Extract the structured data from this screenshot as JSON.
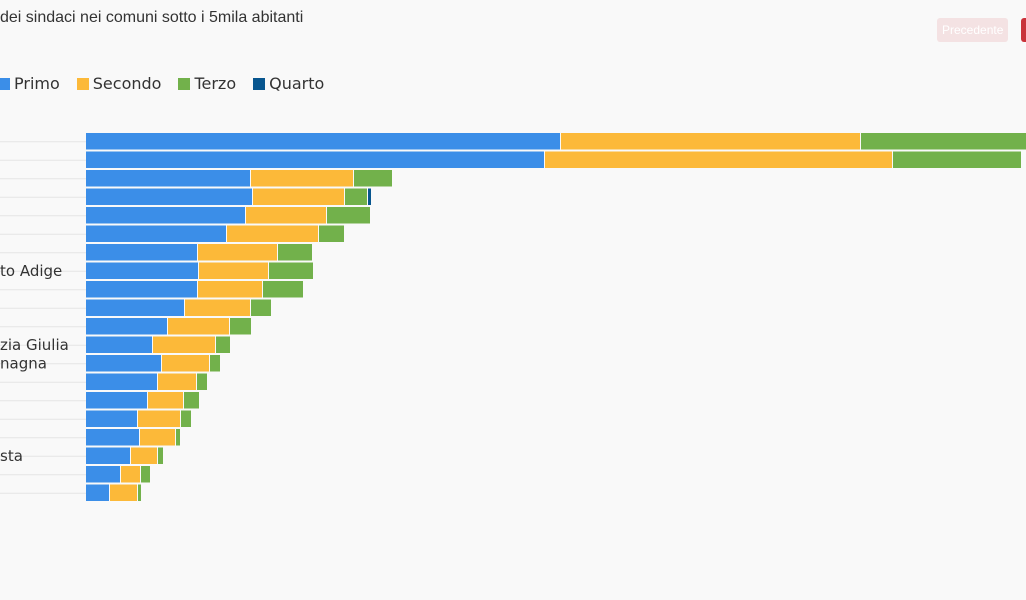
{
  "title": "dei sindaci nei comuni sotto i 5mila abitanti",
  "buttons": {
    "prev_label": "Precedente"
  },
  "colors": {
    "primo": "#3b8ee8",
    "secondo": "#fcb939",
    "terzo": "#72b14b",
    "quarto": "#08568f"
  },
  "chart_data": {
    "type": "bar",
    "orientation": "horizontal",
    "stacked": true,
    "title": "dei sindaci nei comuni sotto i 5mila abitanti",
    "legend_position": "top-left",
    "categories": [
      "",
      "",
      "",
      "",
      "",
      "",
      "",
      "to Adige",
      "",
      "",
      "",
      "zia Giulia",
      "nagna",
      "",
      "",
      "",
      "",
      "sta",
      "",
      ""
    ],
    "series": [
      {
        "name": "Primo",
        "values": [
          475,
          459,
          165,
          167,
          160,
          141,
          112,
          113,
          112,
          99,
          82,
          67,
          76,
          72,
          62,
          52,
          54,
          45,
          35,
          24
        ]
      },
      {
        "name": "Secondo",
        "values": [
          300,
          348,
          103,
          92,
          81,
          92,
          80,
          70,
          65,
          66,
          62,
          63,
          48,
          39,
          36,
          43,
          36,
          27,
          20,
          28
        ]
      },
      {
        "name": "Terzo",
        "values": [
          170,
          129,
          39,
          23,
          44,
          26,
          35,
          45,
          41,
          21,
          22,
          15,
          11,
          11,
          16,
          11,
          5,
          6,
          10,
          4
        ]
      },
      {
        "name": "Quarto",
        "values": [
          0,
          0,
          0,
          4,
          0,
          0,
          0,
          0,
          0,
          0,
          0,
          0,
          0,
          0,
          0,
          0,
          0,
          0,
          0,
          0
        ]
      }
    ]
  }
}
